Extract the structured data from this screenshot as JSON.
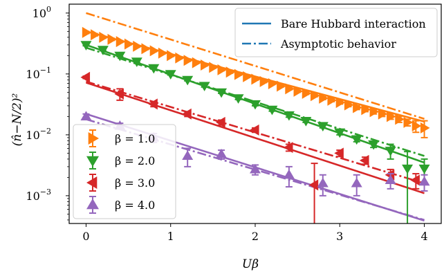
{
  "chart_data": {
    "type": "scatter",
    "xlabel": "Uβ",
    "ylabel": "(n̂−N/2)²",
    "xlim": [
      -0.2,
      4.2
    ],
    "ylim": [
      0.00035,
      1.4
    ],
    "yscale": "log",
    "grid": false,
    "x_ticks": [
      {
        "value": 0,
        "label": "0"
      },
      {
        "value": 1,
        "label": "1"
      },
      {
        "value": 2,
        "label": "2"
      },
      {
        "value": 3,
        "label": "3"
      },
      {
        "value": 4,
        "label": "4"
      }
    ],
    "y_ticks": [
      {
        "value": 1,
        "base": "10",
        "exp": "0"
      },
      {
        "value": 0.1,
        "base": "10",
        "exp": "−1"
      },
      {
        "value": 0.01,
        "base": "10",
        "exp": "−2"
      },
      {
        "value": 0.001,
        "base": "10",
        "exp": "−3"
      }
    ],
    "legend_upper": {
      "placement": "top-right",
      "entries": [
        {
          "label": "Bare Hubbard interaction",
          "style": "solid"
        },
        {
          "label": "Asymptotic behavior",
          "style": "dashdot"
        }
      ]
    },
    "legend_lower": {
      "placement": "bottom-left",
      "entries": [
        {
          "label": "β = 1.0",
          "series": 0
        },
        {
          "label": "β = 2.0",
          "series": 1
        },
        {
          "label": "β = 3.0",
          "series": 2
        },
        {
          "label": "β = 4.0",
          "series": 3
        }
      ]
    },
    "series": [
      {
        "name": "β = 1.0",
        "color": "#ff7f0e",
        "marker": "triangle-right",
        "bare_line": {
          "x": [
            0,
            4
          ],
          "y": [
            0.5,
            0.0165
          ]
        },
        "asymptote": {
          "x": [
            0,
            4
          ],
          "y": [
            1.0,
            0.0183
          ]
        },
        "x": [
          0,
          0.1,
          0.2,
          0.3,
          0.4,
          0.5,
          0.6,
          0.7,
          0.8,
          0.9,
          1.0,
          1.1,
          1.2,
          1.3,
          1.4,
          1.5,
          1.6,
          1.7,
          1.8,
          1.9,
          2.0,
          2.1,
          2.2,
          2.3,
          2.4,
          2.5,
          2.6,
          2.7,
          2.8,
          2.9,
          3.0,
          3.1,
          3.2,
          3.3,
          3.4,
          3.5,
          3.6,
          3.7,
          3.8,
          3.9,
          4.0
        ],
        "y": [
          0.48,
          0.44,
          0.4,
          0.37,
          0.34,
          0.31,
          0.285,
          0.26,
          0.24,
          0.22,
          0.2,
          0.183,
          0.167,
          0.153,
          0.14,
          0.128,
          0.117,
          0.107,
          0.098,
          0.09,
          0.082,
          0.075,
          0.069,
          0.063,
          0.057,
          0.052,
          0.048,
          0.044,
          0.04,
          0.037,
          0.034,
          0.031,
          0.028,
          0.026,
          0.024,
          0.022,
          0.02,
          0.018,
          0.016,
          0.014,
          0.013
        ],
        "err": [
          0.02,
          0.02,
          0.015,
          0.015,
          0.012,
          0.01,
          0.01,
          0.01,
          0.008,
          0.008,
          0.007,
          0.006,
          0.006,
          0.005,
          0.005,
          0.004,
          0.004,
          0.004,
          0.003,
          0.003,
          0.003,
          0.003,
          0.002,
          0.002,
          0.002,
          0.002,
          0.002,
          0.002,
          0.002,
          0.002,
          0.002,
          0.002,
          0.002,
          0.002,
          0.002,
          0.002,
          0.002,
          0.002,
          0.002,
          0.003,
          0.004
        ]
      },
      {
        "name": "β = 2.0",
        "color": "#2ca02c",
        "marker": "triangle-down",
        "bare_line": {
          "x": [
            0,
            4
          ],
          "y": [
            0.3,
            0.0035
          ]
        },
        "asymptote": {
          "x": [
            0,
            4
          ],
          "y": [
            0.27,
            0.0045
          ]
        },
        "x": [
          0,
          0.2,
          0.4,
          0.6,
          0.8,
          1.0,
          1.2,
          1.4,
          1.6,
          1.8,
          2.0,
          2.2,
          2.4,
          2.6,
          2.8,
          3.0,
          3.2,
          3.4,
          3.6,
          3.8,
          4.0
        ],
        "y": [
          0.3,
          0.25,
          0.2,
          0.16,
          0.125,
          0.1,
          0.08,
          0.064,
          0.05,
          0.04,
          0.032,
          0.026,
          0.021,
          0.017,
          0.014,
          0.011,
          0.0085,
          0.007,
          0.0055,
          0.0028,
          0.0028
        ],
        "err": [
          0.01,
          0.01,
          0.008,
          0.006,
          0.005,
          0.004,
          0.003,
          0.003,
          0.002,
          0.002,
          0.002,
          0.0015,
          0.0015,
          0.001,
          0.001,
          0.001,
          0.0008,
          0.0008,
          0.0015,
          0.0025,
          0.0012
        ]
      },
      {
        "name": "β = 3.0",
        "color": "#d62728",
        "marker": "triangle-left",
        "bare_line": {
          "x": [
            0,
            4
          ],
          "y": [
            0.072,
            0.0011
          ]
        },
        "asymptote": {
          "x": [
            0,
            4
          ],
          "y": [
            0.075,
            0.0016
          ]
        },
        "x": [
          0,
          0.4,
          0.8,
          1.2,
          1.6,
          2.0,
          2.4,
          2.7,
          3.0,
          3.3,
          3.6,
          3.9
        ],
        "y": [
          0.088,
          0.047,
          0.032,
          0.022,
          0.016,
          0.012,
          0.0062,
          0.0015,
          0.005,
          0.0038,
          0.0022,
          0.0018
        ],
        "err": [
          0.004,
          0.01,
          0.003,
          0.002,
          0.0015,
          0.001,
          0.0008,
          0.0019,
          0.0006,
          0.0005,
          0.0005,
          0.0005
        ]
      },
      {
        "name": "β = 4.0",
        "color": "#9467bd",
        "marker": "triangle-up",
        "bare_line": {
          "x": [
            0,
            4
          ],
          "y": [
            0.022,
            0.00039
          ]
        },
        "asymptote": {
          "x": [
            0,
            4
          ],
          "y": [
            0.018,
            0.0004
          ]
        },
        "x": [
          0,
          0.4,
          0.8,
          1.2,
          1.6,
          2.0,
          2.4,
          2.8,
          3.2,
          3.6,
          4.0
        ],
        "y": [
          0.02,
          0.014,
          0.009,
          0.0045,
          0.0048,
          0.0027,
          0.0022,
          0.0016,
          0.0016,
          0.0018,
          0.0017
        ],
        "err": [
          0.002,
          0.0015,
          0.0015,
          0.0015,
          0.0008,
          0.0005,
          0.0008,
          0.0006,
          0.0006,
          0.0005,
          0.0005
        ]
      }
    ]
  }
}
